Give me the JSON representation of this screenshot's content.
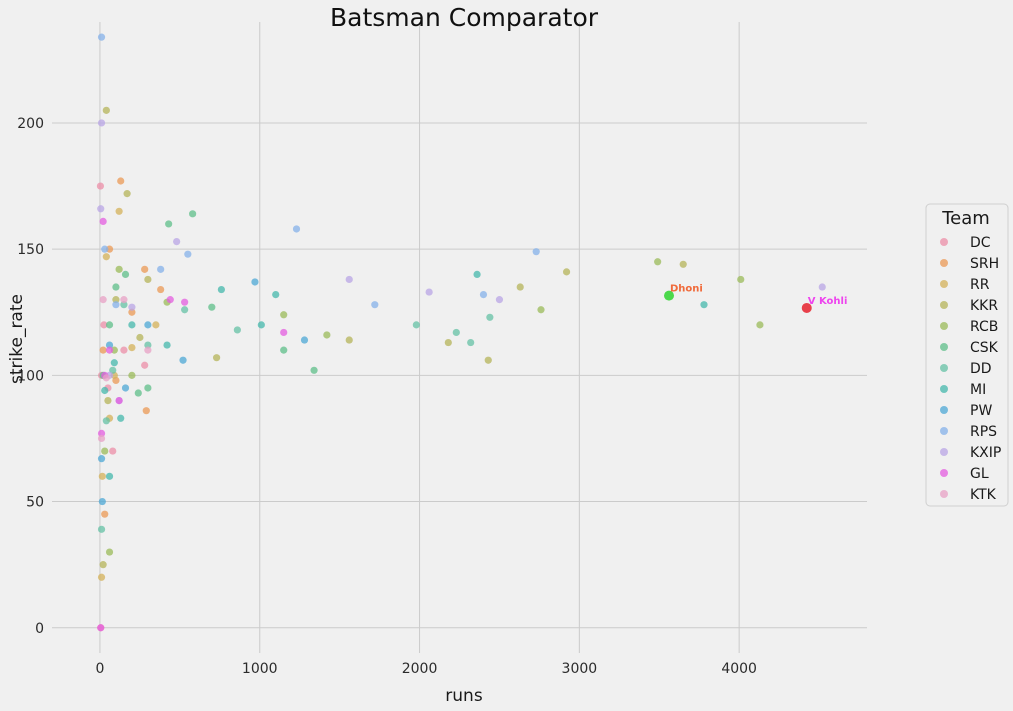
{
  "chart_data": {
    "type": "scatter",
    "title": "Batsman Comparator",
    "xlabel": "runs",
    "ylabel": "strike_rate",
    "xlim": [
      -300,
      4800
    ],
    "ylim": [
      -10,
      240
    ],
    "x_ticks": [
      0,
      1000,
      2000,
      3000,
      4000
    ],
    "y_ticks": [
      0,
      50,
      100,
      150,
      200
    ],
    "grid": true,
    "legend": {
      "title": "Team",
      "placement": "right"
    },
    "series": [
      {
        "name": "DC",
        "color": "#ec8fa8",
        "points": [
          [
            3,
            175
          ],
          [
            10,
            100
          ],
          [
            25,
            120
          ],
          [
            50,
            95
          ],
          [
            80,
            70
          ],
          [
            150,
            110
          ],
          [
            280,
            104
          ],
          [
            5,
            0
          ]
        ]
      },
      {
        "name": "SRH",
        "color": "#eb9a56",
        "points": [
          [
            130,
            177
          ],
          [
            60,
            150
          ],
          [
            280,
            142
          ],
          [
            380,
            134
          ],
          [
            290,
            86
          ],
          [
            20,
            110
          ],
          [
            100,
            98
          ],
          [
            200,
            125
          ],
          [
            30,
            45
          ]
        ]
      },
      {
        "name": "RR",
        "color": "#d4b25a",
        "points": [
          [
            120,
            165
          ],
          [
            10,
            20
          ],
          [
            40,
            147
          ],
          [
            200,
            111
          ],
          [
            90,
            100
          ],
          [
            350,
            120
          ],
          [
            15,
            60
          ],
          [
            60,
            83
          ]
        ]
      },
      {
        "name": "KKR",
        "color": "#b6b45a",
        "points": [
          [
            40,
            205
          ],
          [
            170,
            172
          ],
          [
            100,
            130
          ],
          [
            300,
            138
          ],
          [
            50,
            90
          ],
          [
            20,
            25
          ],
          [
            250,
            115
          ],
          [
            3650,
            144
          ],
          [
            2920,
            141
          ],
          [
            2630,
            135
          ],
          [
            2430,
            106
          ],
          [
            2180,
            113
          ],
          [
            1560,
            114
          ],
          [
            730,
            107
          ]
        ]
      },
      {
        "name": "RCB",
        "color": "#9bbb59",
        "points": [
          [
            4010,
            138
          ],
          [
            3490,
            145
          ],
          [
            4130,
            120
          ],
          [
            2760,
            126
          ],
          [
            1150,
            124
          ],
          [
            90,
            110
          ],
          [
            30,
            70
          ],
          [
            120,
            142
          ],
          [
            420,
            129
          ],
          [
            200,
            100
          ],
          [
            60,
            30
          ],
          [
            1420,
            116
          ]
        ]
      },
      {
        "name": "CSK",
        "color": "#5fbf89",
        "points": [
          [
            3560,
            132
          ],
          [
            430,
            160
          ],
          [
            580,
            164
          ],
          [
            1150,
            110
          ],
          [
            160,
            140
          ],
          [
            60,
            120
          ],
          [
            240,
            93
          ],
          [
            20,
            100
          ],
          [
            300,
            95
          ],
          [
            700,
            127
          ],
          [
            100,
            135
          ],
          [
            1340,
            102
          ]
        ]
      },
      {
        "name": "DD",
        "color": "#66c2a5",
        "points": [
          [
            2230,
            117
          ],
          [
            1980,
            120
          ],
          [
            860,
            118
          ],
          [
            530,
            126
          ],
          [
            80,
            102
          ],
          [
            300,
            112
          ],
          [
            40,
            82
          ],
          [
            150,
            128
          ],
          [
            10,
            39
          ],
          [
            2320,
            113
          ],
          [
            2440,
            123
          ]
        ]
      },
      {
        "name": "MI",
        "color": "#45b8ac",
        "points": [
          [
            3780,
            128
          ],
          [
            2360,
            140
          ],
          [
            1010,
            120
          ],
          [
            760,
            134
          ],
          [
            420,
            112
          ],
          [
            200,
            120
          ],
          [
            90,
            105
          ],
          [
            30,
            94
          ],
          [
            130,
            83
          ],
          [
            60,
            60
          ],
          [
            1100,
            132
          ]
        ]
      },
      {
        "name": "PW",
        "color": "#4ea8d6",
        "points": [
          [
            970,
            137
          ],
          [
            520,
            106
          ],
          [
            300,
            120
          ],
          [
            160,
            95
          ],
          [
            60,
            112
          ],
          [
            15,
            50
          ],
          [
            10,
            67
          ],
          [
            1280,
            114
          ]
        ]
      },
      {
        "name": "RPS",
        "color": "#86b2ea",
        "points": [
          [
            10,
            234
          ],
          [
            2730,
            149
          ],
          [
            1230,
            158
          ],
          [
            550,
            148
          ],
          [
            380,
            142
          ],
          [
            100,
            128
          ],
          [
            30,
            150
          ],
          [
            1720,
            128
          ],
          [
            2400,
            132
          ]
        ]
      },
      {
        "name": "KXIP",
        "color": "#b9a6e6",
        "points": [
          [
            4520,
            135
          ],
          [
            2060,
            133
          ],
          [
            1560,
            138
          ],
          [
            480,
            153
          ],
          [
            200,
            127
          ],
          [
            10,
            200
          ],
          [
            60,
            100
          ],
          [
            120,
            90
          ],
          [
            5,
            166
          ],
          [
            2500,
            130
          ]
        ]
      },
      {
        "name": "GL",
        "color": "#e45ee0",
        "points": [
          [
            20,
            161
          ],
          [
            120,
            90
          ],
          [
            440,
            130
          ],
          [
            530,
            129
          ],
          [
            60,
            110
          ],
          [
            30,
            100
          ],
          [
            10,
            77
          ],
          [
            5,
            0
          ],
          [
            1150,
            117
          ]
        ]
      },
      {
        "name": "KTK",
        "color": "#e8a2c5",
        "points": [
          [
            10,
            75
          ],
          [
            40,
            99
          ],
          [
            150,
            130
          ],
          [
            300,
            110
          ],
          [
            20,
            130
          ]
        ]
      }
    ],
    "annotations": [
      {
        "label": "Dhoni",
        "x": 3561,
        "y": 131.6,
        "color": "#4cd84c",
        "text_color": "#f06a3a"
      },
      {
        "label": "V Kohli",
        "x": 4423,
        "y": 126.7,
        "color": "#e8404a",
        "text_color": "#ee44ee"
      }
    ]
  }
}
